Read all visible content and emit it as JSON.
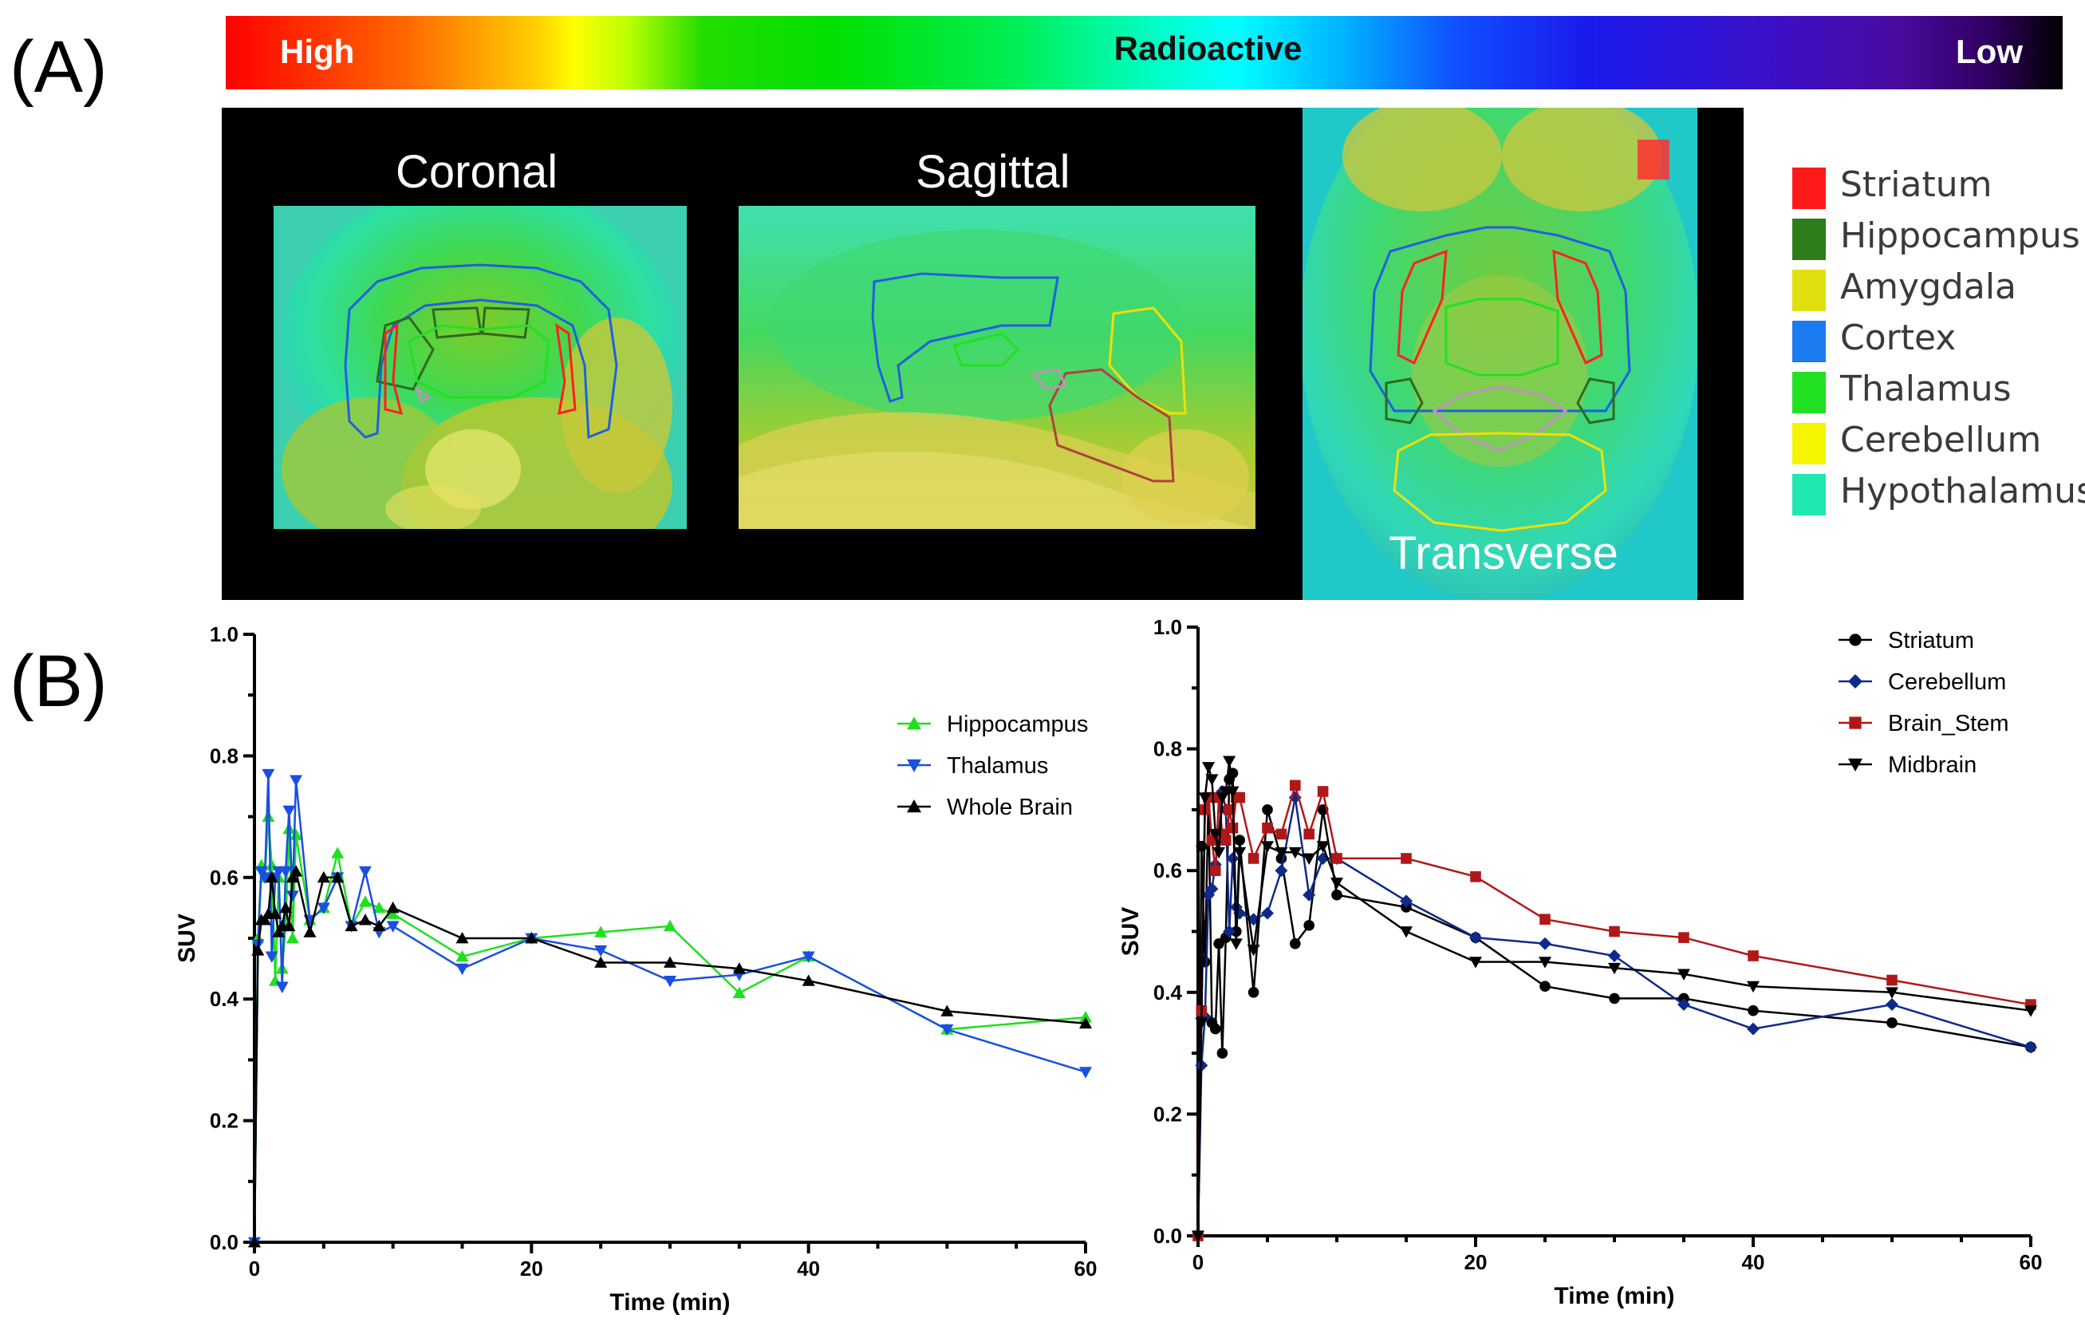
{
  "panel_labels": {
    "a": "(A)",
    "b": "(B)"
  },
  "colorbar": {
    "high": "High",
    "title": "Radioactive",
    "low": "Low"
  },
  "views": {
    "coronal": "Coronal",
    "sagittal": "Sagittal",
    "transverse": "Transverse"
  },
  "roi_legend": [
    {
      "label": "Striatum",
      "color": "#ff1a1a"
    },
    {
      "label": "Hippocampus",
      "color": "#2e7d1a"
    },
    {
      "label": "Amygdala",
      "color": "#e0e010"
    },
    {
      "label": "Cortex",
      "color": "#1a7cf0"
    },
    {
      "label": "Thalamus",
      "color": "#22e022"
    },
    {
      "label": "Cerebellum",
      "color": "#f5f500"
    },
    {
      "label": "Hypothalamus",
      "color": "#20e8b0"
    }
  ],
  "chart_data": [
    {
      "type": "line",
      "xlabel": "Time (min)",
      "ylabel": "SUV",
      "xlim": [
        0,
        60
      ],
      "ylim": [
        0,
        1.0
      ],
      "xticks": [
        "0",
        "20",
        "40",
        "60"
      ],
      "yticks": [
        "0.0",
        "0.2",
        "0.4",
        "0.6",
        "0.8",
        "1.0"
      ],
      "legend_position": "right",
      "series": [
        {
          "name": "Hippocampus",
          "color": "#1fe01f",
          "marker": "triangle-up",
          "x": [
            0,
            0.25,
            0.5,
            0.75,
            1,
            1.25,
            1.5,
            1.75,
            2,
            2.25,
            2.5,
            2.75,
            3,
            4,
            5,
            6,
            7,
            8,
            9,
            10,
            15,
            20,
            25,
            30,
            35,
            40,
            50,
            60
          ],
          "y": [
            0,
            0.5,
            0.62,
            0.6,
            0.7,
            0.62,
            0.43,
            0.6,
            0.45,
            0.52,
            0.68,
            0.5,
            0.67,
            0.53,
            0.55,
            0.64,
            0.52,
            0.56,
            0.55,
            0.54,
            0.47,
            0.5,
            0.51,
            0.52,
            0.41,
            0.47,
            0.35,
            0.37
          ]
        },
        {
          "name": "Thalamus",
          "color": "#1a4fe0",
          "marker": "triangle-down",
          "x": [
            0,
            0.25,
            0.5,
            0.75,
            1,
            1.25,
            1.5,
            1.75,
            2,
            2.25,
            2.5,
            2.75,
            3,
            4,
            5,
            6,
            7,
            8,
            9,
            10,
            15,
            20,
            25,
            30,
            35,
            40,
            50,
            60
          ],
          "y": [
            0,
            0.49,
            0.61,
            0.6,
            0.77,
            0.47,
            0.6,
            0.61,
            0.42,
            0.61,
            0.71,
            0.57,
            0.76,
            0.53,
            0.55,
            0.6,
            0.52,
            0.61,
            0.51,
            0.52,
            0.45,
            0.5,
            0.48,
            0.43,
            0.44,
            0.47,
            0.35,
            0.28
          ]
        },
        {
          "name": "Whole Brain",
          "color": "#000000",
          "marker": "triangle-up",
          "x": [
            0,
            0.25,
            0.5,
            0.75,
            1,
            1.25,
            1.5,
            1.75,
            2,
            2.25,
            2.5,
            2.75,
            3,
            4,
            5,
            6,
            7,
            8,
            9,
            10,
            15,
            20,
            25,
            30,
            35,
            40,
            50,
            60
          ],
          "y": [
            0,
            0.48,
            0.53,
            0.53,
            0.54,
            0.6,
            0.54,
            0.51,
            0.52,
            0.55,
            0.52,
            0.6,
            0.61,
            0.51,
            0.6,
            0.6,
            0.52,
            0.53,
            0.52,
            0.55,
            0.5,
            0.5,
            0.46,
            0.46,
            0.45,
            0.43,
            0.38,
            0.36
          ]
        }
      ]
    },
    {
      "type": "line",
      "xlabel": "Time (min)",
      "ylabel": "SUV",
      "xlim": [
        0,
        60
      ],
      "ylim": [
        0,
        1.0
      ],
      "xticks": [
        "0",
        "20",
        "40",
        "60"
      ],
      "yticks": [
        "0.0",
        "0.2",
        "0.4",
        "0.6",
        "0.8",
        "1.0"
      ],
      "legend_position": "top-right",
      "series": [
        {
          "name": "Striatum",
          "color": "#000000",
          "marker": "circle",
          "x": [
            0,
            0.25,
            0.5,
            0.75,
            1,
            1.25,
            1.5,
            1.75,
            2,
            2.25,
            2.5,
            2.75,
            3,
            4,
            5,
            6,
            7,
            8,
            9,
            10,
            15,
            20,
            25,
            30,
            35,
            40,
            50,
            60
          ],
          "y": [
            0,
            0.64,
            0.45,
            0.72,
            0.35,
            0.34,
            0.48,
            0.3,
            0.49,
            0.75,
            0.76,
            0.5,
            0.65,
            0.4,
            0.7,
            0.62,
            0.48,
            0.51,
            0.7,
            0.56,
            0.54,
            0.49,
            0.41,
            0.39,
            0.39,
            0.37,
            0.35,
            0.31
          ]
        },
        {
          "name": "Cerebellum",
          "color": "#0d2a8a",
          "marker": "diamond",
          "x": [
            0,
            0.25,
            0.5,
            0.75,
            1,
            1.25,
            1.5,
            1.75,
            2,
            2.25,
            2.5,
            2.75,
            3,
            4,
            5,
            6,
            7,
            8,
            9,
            10,
            15,
            20,
            25,
            30,
            35,
            40,
            50,
            60
          ],
          "y": [
            0,
            0.28,
            0.36,
            0.56,
            0.57,
            0.61,
            0.66,
            0.73,
            0.7,
            0.5,
            0.62,
            0.54,
            0.53,
            0.52,
            0.53,
            0.6,
            0.72,
            0.56,
            0.62,
            0.62,
            0.55,
            0.49,
            0.48,
            0.46,
            0.38,
            0.34,
            0.38,
            0.31
          ]
        },
        {
          "name": "Brain_Stem",
          "color": "#b01818",
          "marker": "square",
          "x": [
            0,
            0.25,
            0.5,
            0.75,
            1,
            1.25,
            1.5,
            1.75,
            2,
            2.25,
            2.5,
            2.75,
            3,
            4,
            5,
            6,
            7,
            8,
            9,
            10,
            15,
            20,
            25,
            30,
            35,
            40,
            50,
            60
          ],
          "y": [
            0,
            0.37,
            0.7,
            0.72,
            0.65,
            0.6,
            0.72,
            0.66,
            0.65,
            0.7,
            0.67,
            0.72,
            0.72,
            0.62,
            0.67,
            0.66,
            0.74,
            0.66,
            0.73,
            0.62,
            0.62,
            0.59,
            0.52,
            0.5,
            0.49,
            0.46,
            0.42,
            0.38
          ]
        },
        {
          "name": "Midbrain",
          "color": "#000000",
          "marker": "triangle-down",
          "x": [
            0,
            0.25,
            0.5,
            0.75,
            1,
            1.25,
            1.5,
            1.75,
            2,
            2.25,
            2.5,
            2.75,
            3,
            4,
            5,
            6,
            7,
            8,
            9,
            10,
            15,
            20,
            25,
            30,
            35,
            40,
            50,
            60
          ],
          "y": [
            0,
            0.35,
            0.72,
            0.77,
            0.75,
            0.66,
            0.63,
            0.72,
            0.73,
            0.78,
            0.73,
            0.48,
            0.63,
            0.47,
            0.64,
            0.63,
            0.63,
            0.62,
            0.64,
            0.58,
            0.5,
            0.45,
            0.45,
            0.44,
            0.43,
            0.41,
            0.4,
            0.37
          ]
        }
      ]
    }
  ]
}
